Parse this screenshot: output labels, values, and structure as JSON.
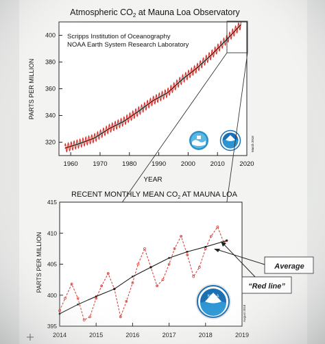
{
  "colors": {
    "background": "#b9bcc0",
    "paper": "#f3f3f1",
    "seasonal_line": "#d4302a",
    "trend_line": "#141414",
    "red_line": "#d6433c",
    "average_line": "#1a1a1a",
    "noaa_blue": "#1d6fb3"
  },
  "chart_data": [
    {
      "type": "line",
      "title": "Atmospheric CO2 at Mauna Loa Observatory",
      "title_main": "Atmospheric CO",
      "title_sub": "2",
      "title_rest": " at Mauna Loa Observatory",
      "xlabel": "YEAR",
      "ylabel": "PARTS PER MILLION",
      "xlim": [
        1956,
        2020
      ],
      "ylim": [
        310,
        410
      ],
      "xticks": [
        1960,
        1970,
        1980,
        1990,
        2000,
        2010,
        2020
      ],
      "yticks": [
        320,
        340,
        360,
        380,
        400
      ],
      "legend": {
        "placement": "top-left",
        "entries": [
          "Scripps Institution of Oceanography",
          "NOAA Earth System Research Laboratory"
        ]
      },
      "stamp": "March 2018",
      "logos": [
        "scripps-logo",
        "noaa-logo"
      ],
      "series": [
        {
          "role": "monthly",
          "seasonal_amplitude_ppm": 3.2,
          "x": [
            1958,
            1963,
            1968,
            1973,
            1978,
            1983,
            1988,
            1993,
            1998,
            2003,
            2008,
            2013,
            2018
          ],
          "values": [
            315.5,
            319,
            323,
            330,
            335.5,
            343,
            351,
            357,
            367,
            375.5,
            385.5,
            396.5,
            408
          ]
        },
        {
          "role": "trend",
          "x": [
            1958,
            1963,
            1968,
            1973,
            1978,
            1983,
            1988,
            1993,
            1998,
            2003,
            2008,
            2013,
            2018
          ],
          "values": [
            315.5,
            319,
            323,
            330,
            335.5,
            343,
            351,
            357,
            367,
            375.5,
            385.5,
            396.5,
            408
          ]
        }
      ]
    },
    {
      "type": "line",
      "title": "RECENT MONTHLY MEAN CO2 AT MAUNA LOA",
      "title_main": "RECENT MONTHLY MEAN CO",
      "title_sub": "2",
      "title_rest": " AT MAUNA LOA",
      "xlabel": "",
      "ylabel": "PARTS PER MILLION",
      "xlim": [
        2014,
        2019
      ],
      "ylim": [
        395,
        415
      ],
      "xticks": [
        2014,
        2015,
        2016,
        2017,
        2018,
        2019
      ],
      "yticks": [
        395,
        400,
        405,
        410,
        415
      ],
      "stamp": "August 2018",
      "logos": [
        "noaa-logo"
      ],
      "series": [
        {
          "role": "red-line",
          "x": [
            2014.0,
            2014.15,
            2014.33,
            2014.5,
            2014.67,
            2014.83,
            2015.0,
            2015.15,
            2015.33,
            2015.5,
            2015.67,
            2015.83,
            2016.0,
            2016.15,
            2016.33,
            2016.5,
            2016.67,
            2016.83,
            2017.0,
            2017.15,
            2017.33,
            2017.5,
            2017.67,
            2017.83,
            2018.0,
            2018.15,
            2018.33,
            2018.5,
            2018.58
          ],
          "values": [
            397.5,
            399.5,
            401.8,
            399.5,
            396.0,
            396.5,
            399.5,
            401.5,
            403.5,
            401.0,
            396.5,
            399.0,
            402.0,
            405.0,
            407.5,
            404.5,
            401.5,
            402.5,
            405.0,
            407.5,
            409.5,
            406.5,
            403.0,
            404.5,
            407.5,
            409.5,
            411.0,
            408.5,
            408.8
          ]
        },
        {
          "role": "average",
          "x": [
            2014.0,
            2014.5,
            2015.0,
            2015.5,
            2016.0,
            2016.5,
            2017.0,
            2017.5,
            2018.0,
            2018.58
          ],
          "values": [
            397.0,
            398.5,
            399.8,
            401.0,
            403.0,
            404.5,
            406.0,
            407.0,
            407.8,
            408.8
          ]
        }
      ]
    }
  ],
  "annotations": {
    "average_label": "Average",
    "red_line_label": "“Red line”"
  }
}
